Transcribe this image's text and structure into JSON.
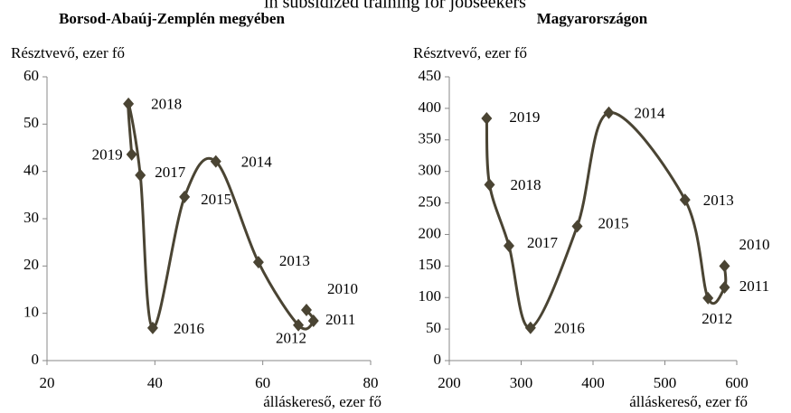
{
  "title": "in subsidized training for jobseekers",
  "chart_data": [
    {
      "type": "line",
      "title": "Borsod-Abaúj-Zemplén megyében",
      "ylabel": "Résztvevő, ezer fő",
      "xlabel": "álláskereső, ezer fő",
      "categories": [
        "2010",
        "2011",
        "2012",
        "2013",
        "2014",
        "2015",
        "2016",
        "2017",
        "2018",
        "2019"
      ],
      "x": [
        68.1,
        69.4,
        66.6,
        59.2,
        51.3,
        45.5,
        39.6,
        37.3,
        35.1,
        35.7
      ],
      "values": [
        10.7,
        8.4,
        7.5,
        20.8,
        42.1,
        34.6,
        6.9,
        39.2,
        54.3,
        43.6
      ],
      "color": "#4a4433",
      "xlim": [
        20,
        80
      ],
      "xticks": [
        20,
        40,
        60,
        80
      ],
      "ylim": [
        0,
        60
      ],
      "yticks": [
        0,
        10,
        20,
        30,
        40,
        50,
        60
      ]
    },
    {
      "type": "line",
      "title": "Magyarországon",
      "ylabel": "Résztvevő, ezer fő",
      "xlabel": "álláskereső, ezer fő",
      "categories": [
        "2010",
        "2011",
        "2012",
        "2013",
        "2014",
        "2015",
        "2016",
        "2017",
        "2018",
        "2019"
      ],
      "x": [
        583,
        583,
        560,
        528,
        422,
        378,
        313,
        283,
        256,
        252
      ],
      "values": [
        150,
        116,
        99,
        255,
        393,
        213,
        52,
        182,
        279,
        384
      ],
      "color": "#4a4433",
      "xlim": [
        200,
        600
      ],
      "xticks": [
        200,
        300,
        400,
        500,
        600
      ],
      "ylim": [
        0,
        450
      ],
      "yticks": [
        0,
        50,
        100,
        150,
        200,
        250,
        300,
        350,
        400,
        450
      ]
    }
  ]
}
